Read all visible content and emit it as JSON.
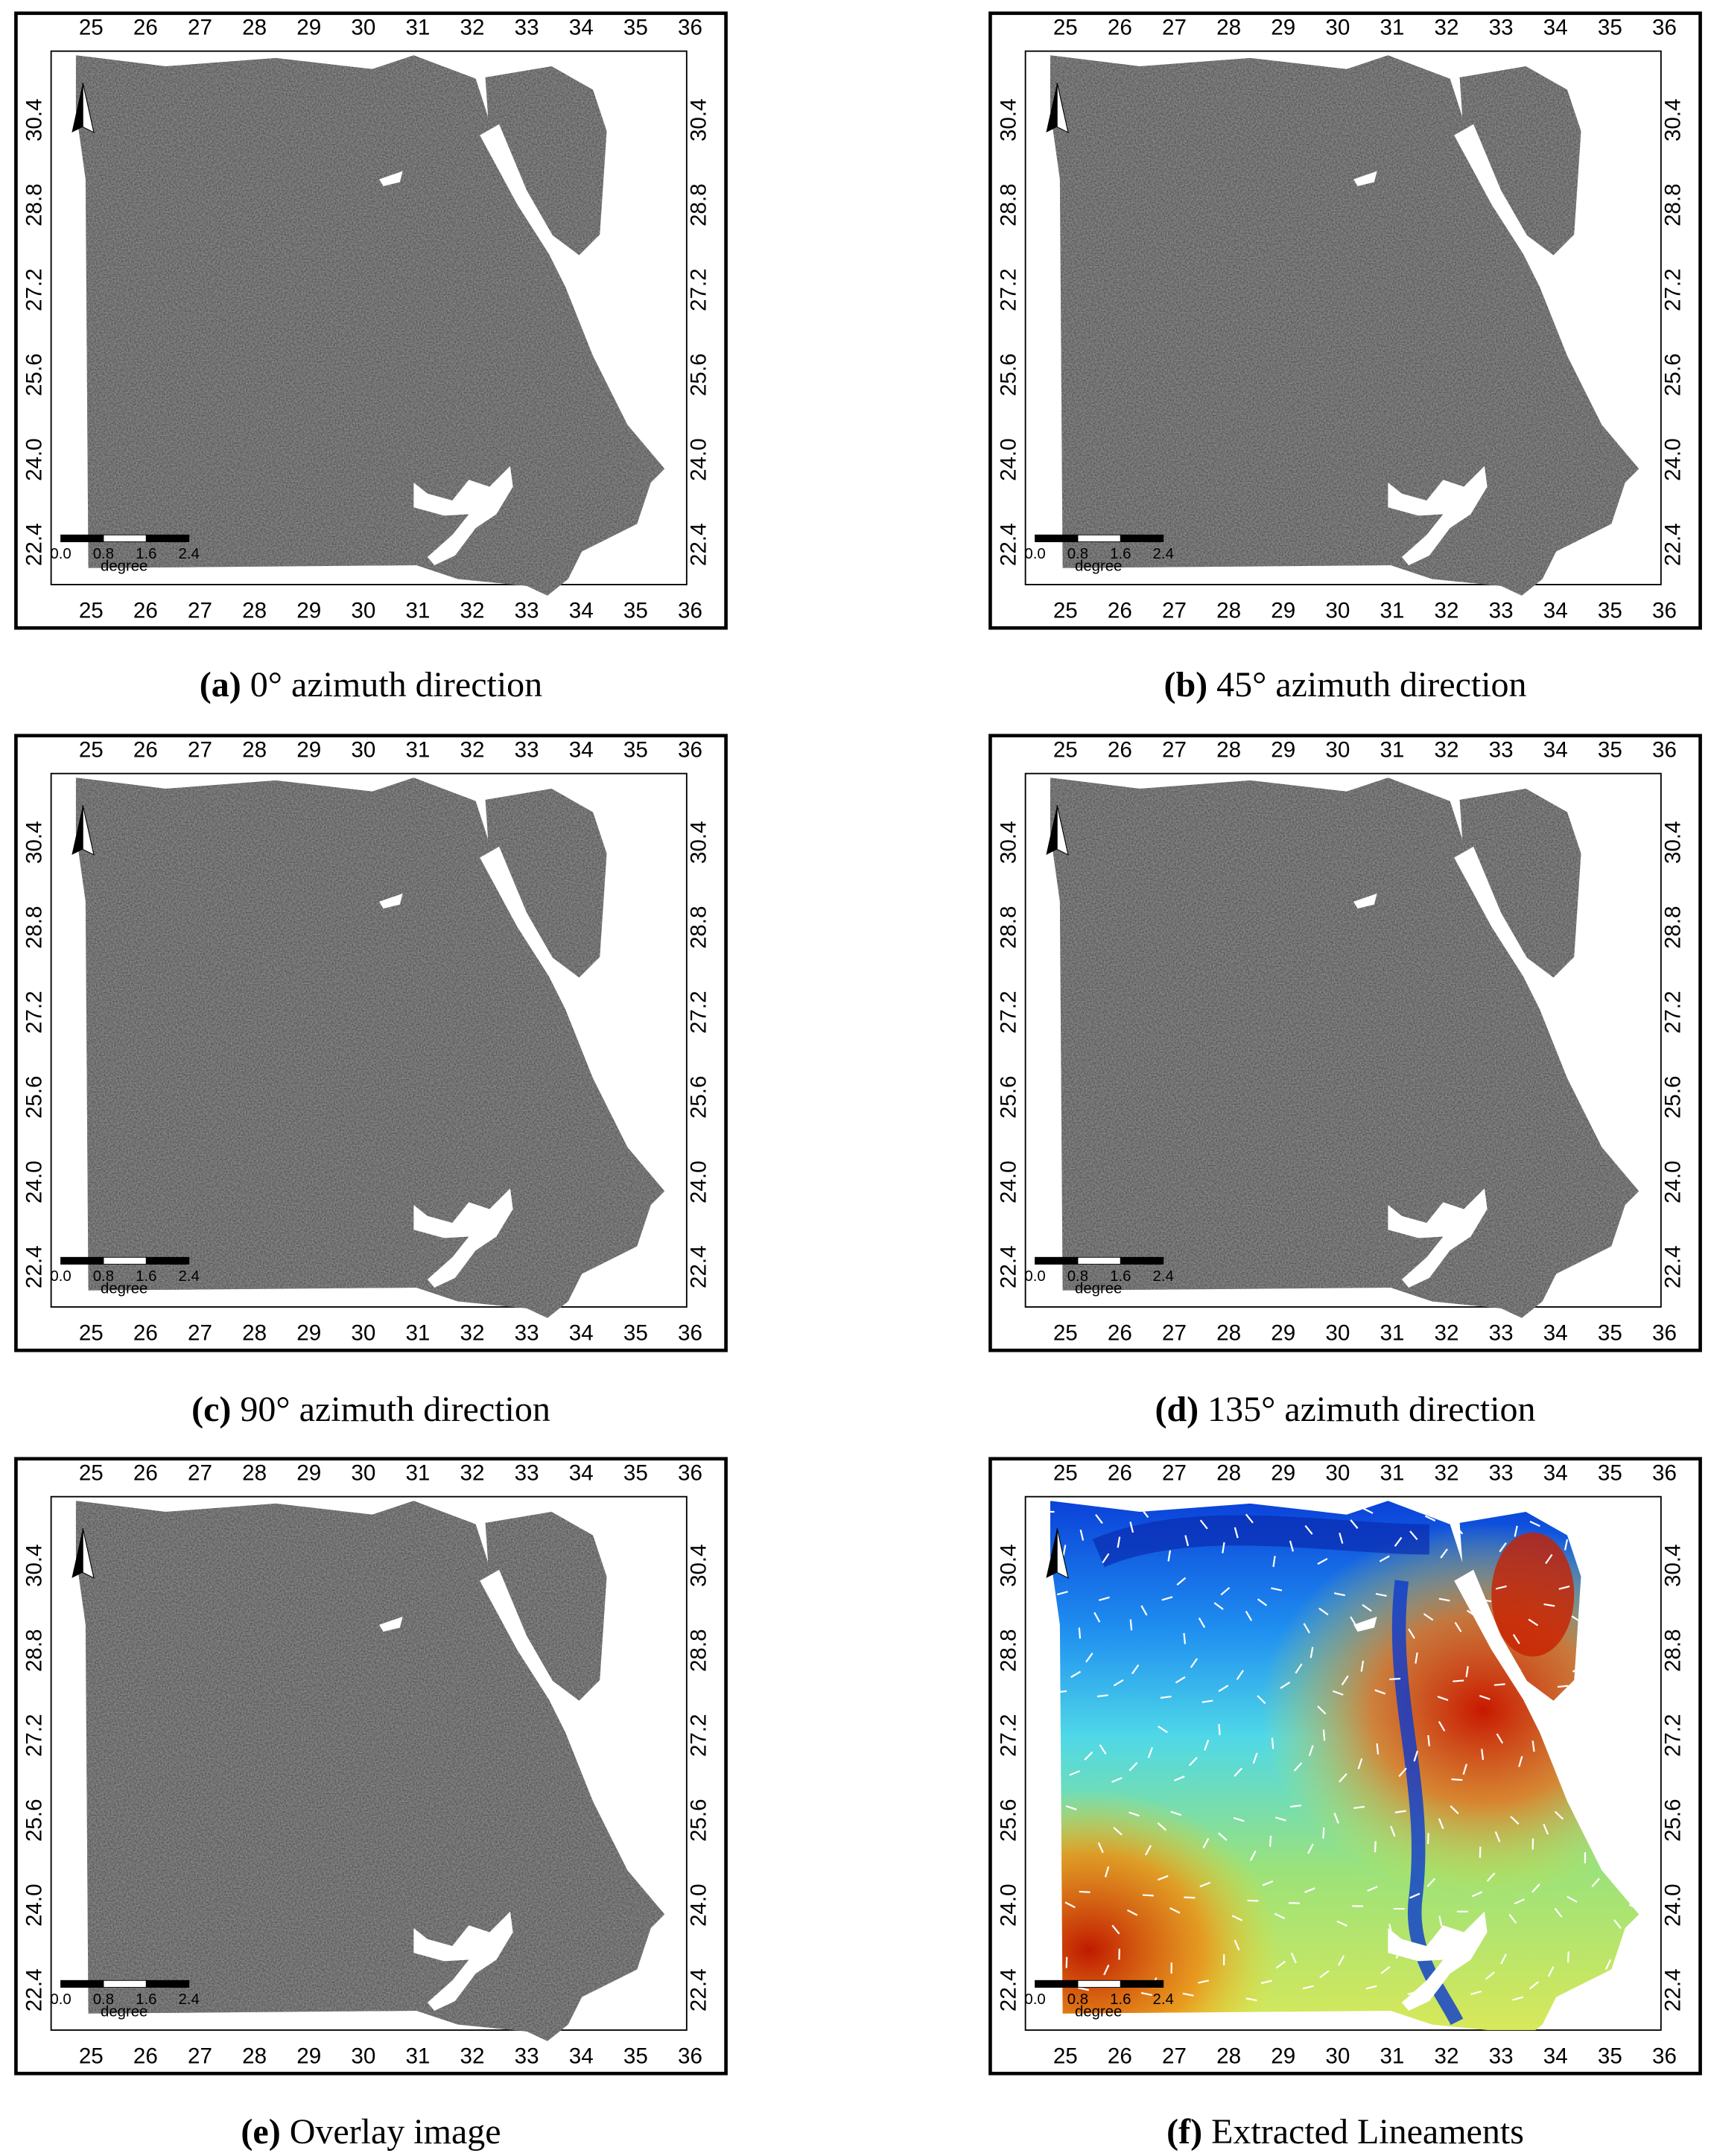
{
  "map_axes": {
    "xticks": [
      "25",
      "26",
      "27",
      "28",
      "29",
      "30",
      "31",
      "32",
      "33",
      "34",
      "35",
      "36"
    ],
    "yticks": [
      "30.4",
      "28.8",
      "27.2",
      "25.6",
      "24.0",
      "22.4"
    ]
  },
  "scale_bar": {
    "labels": [
      "0.0",
      "0.8",
      "1.6",
      "2.4"
    ],
    "unit": "degree"
  },
  "panels": [
    {
      "label": "(a)",
      "caption": "0° azimuth direction"
    },
    {
      "label": "(b)",
      "caption": "45° azimuth direction"
    },
    {
      "label": "(c)",
      "caption": "90° azimuth direction"
    },
    {
      "label": "(d)",
      "caption": "135° azimuth direction"
    },
    {
      "label": "(e)",
      "caption": "Overlay image"
    },
    {
      "label": "(f)",
      "caption": "Extracted Lineaments"
    }
  ]
}
